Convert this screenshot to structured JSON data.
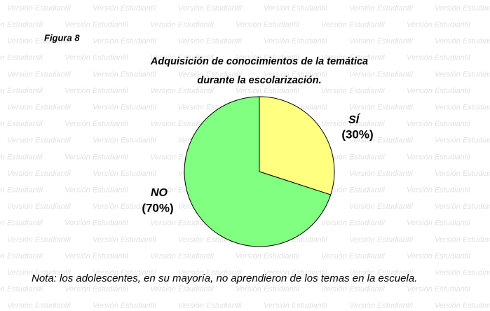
{
  "watermark": "Versión Estudiantil",
  "figure_label": "Figura 8",
  "note": "Nota: los adolescentes, en su mayoría, no aprendieron de los temas en la escuela.",
  "chart_data": {
    "type": "pie",
    "title": [
      "Adquisición de conocimientos de la temática",
      "durante la escolarización."
    ],
    "categories": [
      "SÍ",
      "NO"
    ],
    "values": [
      30,
      70
    ],
    "value_labels": [
      "(30%)",
      "(70%)"
    ],
    "colors": [
      "#ffff80",
      "#80ff80"
    ]
  }
}
